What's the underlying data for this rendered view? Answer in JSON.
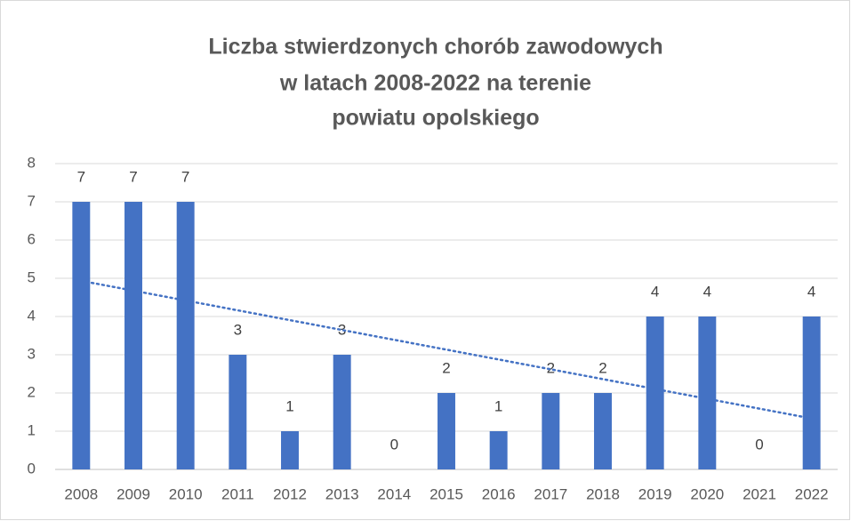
{
  "chart_data": {
    "type": "bar",
    "title": [
      "Liczba stwierdzonych chorób zawodowych",
      "w latach 2008-2022 na terenie",
      "powiatu opolskiego"
    ],
    "categories": [
      "2008",
      "2009",
      "2010",
      "2011",
      "2012",
      "2013",
      "2014",
      "2015",
      "2016",
      "2017",
      "2018",
      "2019",
      "2020",
      "2021",
      "2022"
    ],
    "values": [
      7,
      7,
      7,
      3,
      1,
      3,
      0,
      2,
      1,
      2,
      2,
      4,
      4,
      0,
      4
    ],
    "color": "#4472c4",
    "ylim": [
      0,
      8
    ],
    "yticks": [
      0,
      1,
      2,
      3,
      4,
      5,
      6,
      7,
      8
    ],
    "grid": true,
    "data_labels": true,
    "trendline": "linear",
    "trendline_color": "#4472c4"
  }
}
